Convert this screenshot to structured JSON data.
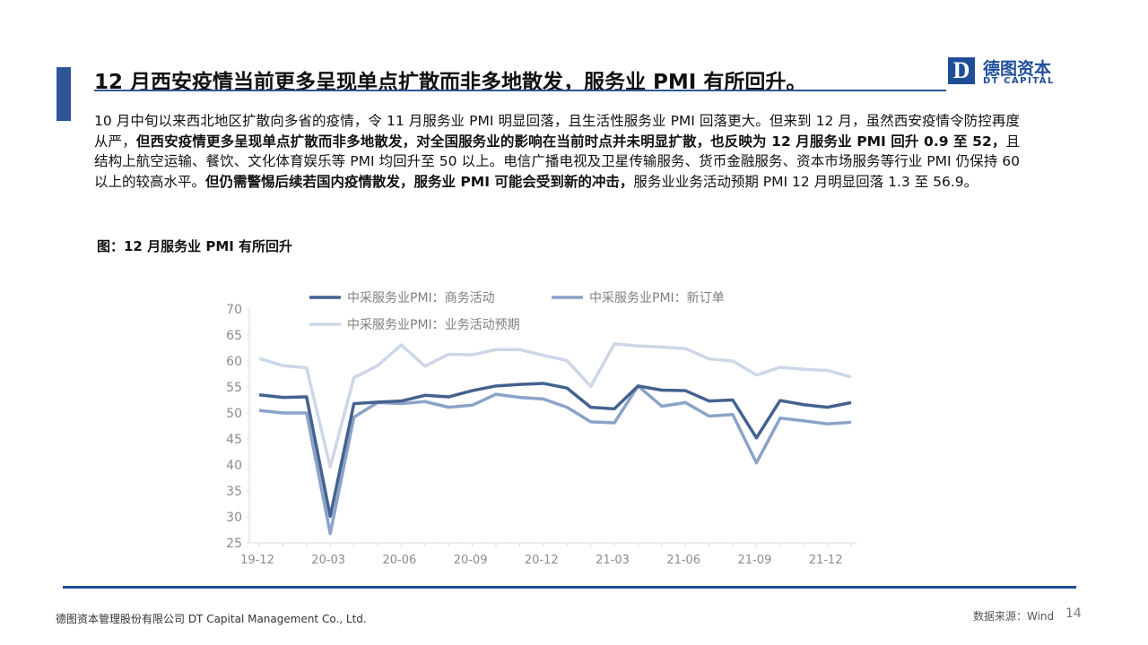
{
  "header": {
    "title": "12 月西安疫情当前更多呈现单点扩散而非多地散发，服务业 PMI 有所回升。",
    "logo_cn": "德图资本",
    "logo_en": "DT CAPITAL"
  },
  "body": {
    "segments": [
      {
        "text": "10 月中旬以来西北地区扩散向多省的疫情，令 11 月服务业 PMI 明显回落，且生活性服务业 PMI 回落更大。但来到 12 月，虽然西安疫情令防控再度从严，",
        "bold": false
      },
      {
        "text": "但西安疫情更多呈现单点扩散而非多地散发，对全国服务业的影响在当前时点并未明显扩散，也反映为 12 月服务业 PMI 回升 0.9 至 52，",
        "bold": true
      },
      {
        "text": "且结构上航空运输、餐饮、文化体育娱乐等 PMI 均回升至 50 以上。电信广播电视及卫星传输服务、货币金融服务、资本市场服务等行业 PMI 仍保持 60 以上的较高水平。",
        "bold": false
      },
      {
        "text": "但仍需警惕后续若国内疫情散发，服务业 PMI 可能会受到新的冲击，",
        "bold": true
      },
      {
        "text": "服务业业务活动预期 PMI 12 月明显回落 1.3 至 56.9。",
        "bold": false
      }
    ]
  },
  "chart_data": {
    "type": "line",
    "title": "图：12 月服务业 PMI 有所回升",
    "categories": [
      "19-12",
      null,
      null,
      "20-03",
      null,
      null,
      "20-06",
      null,
      null,
      "20-09",
      null,
      null,
      "20-12",
      null,
      null,
      "21-03",
      null,
      null,
      "21-06",
      null,
      null,
      "21-09",
      null,
      null,
      "21-12",
      null
    ],
    "series": [
      {
        "name": "中采服务业PMI：商务活动",
        "color": "#44628f",
        "values": [
          53.5,
          53.0,
          53.1,
          30.1,
          51.8,
          52.1,
          52.3,
          53.4,
          53.1,
          54.3,
          55.2,
          55.5,
          55.7,
          54.8,
          51.1,
          50.8,
          55.2,
          54.4,
          54.3,
          52.3,
          52.5,
          45.2,
          52.4,
          51.6,
          51.1,
          52.0
        ]
      },
      {
        "name": "中采服务业PMI：新订单",
        "color": "#8ba3c8",
        "values": [
          50.5,
          50.0,
          50.0,
          26.8,
          49.2,
          52.0,
          51.8,
          52.2,
          51.1,
          51.5,
          53.6,
          53.0,
          52.7,
          51.1,
          48.3,
          48.1,
          55.2,
          51.3,
          52.0,
          49.4,
          49.7,
          40.4,
          49.0,
          48.5,
          47.9,
          48.2
        ]
      },
      {
        "name": "中采服务业PMI：业务活动预期",
        "color": "#ccd7e7",
        "values": [
          60.5,
          59.1,
          58.7,
          39.6,
          56.8,
          59.1,
          63.1,
          59.0,
          61.3,
          61.2,
          62.2,
          62.2,
          61.1,
          60.1,
          55.1,
          63.3,
          62.9,
          62.7,
          62.4,
          60.4,
          60.0,
          57.3,
          58.8,
          58.4,
          58.2,
          56.9
        ]
      }
    ],
    "ylim": [
      25,
      70
    ],
    "yticks": [
      25,
      30,
      35,
      40,
      45,
      50,
      55,
      60,
      65,
      70
    ],
    "grid": false
  },
  "footer": {
    "company": "德图资本管理股份有限公司  DT Capital Management  Co., Ltd.",
    "source": "数据来源：Wind",
    "page": "14"
  }
}
